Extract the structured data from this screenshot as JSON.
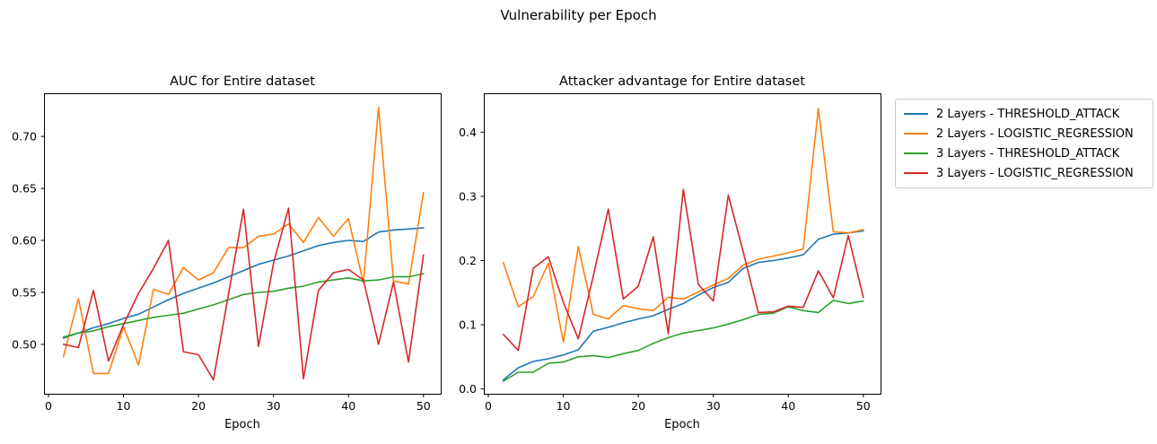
{
  "figure": {
    "title": "Vulnerability per Epoch",
    "background": "#ffffff",
    "text_color": "#000000"
  },
  "legend": {
    "position": "outside-right",
    "items": [
      {
        "label": "2 Layers - THRESHOLD_ATTACK",
        "color": "#1f77b4"
      },
      {
        "label": "2 Layers - LOGISTIC_REGRESSION",
        "color": "#ff7f0e"
      },
      {
        "label": "3 Layers - THRESHOLD_ATTACK",
        "color": "#2ca02c"
      },
      {
        "label": "3 Layers - LOGISTIC_REGRESSION",
        "color": "#d62728"
      }
    ]
  },
  "chart_data": [
    {
      "id": "auc-chart",
      "type": "line",
      "title": "AUC for Entire dataset",
      "xlabel": "Epoch",
      "ylabel": "",
      "grid": false,
      "xlim": [
        -0.6,
        52.3
      ],
      "ylim": [
        0.4525,
        0.7415
      ],
      "xticks": [
        0,
        10,
        20,
        30,
        40,
        50
      ],
      "yticks": [
        0.5,
        0.55,
        0.6,
        0.65,
        0.7
      ],
      "ytick_labels": [
        "0.50",
        "0.55",
        "0.60",
        "0.65",
        "0.70"
      ],
      "x": [
        2,
        4,
        6,
        8,
        10,
        12,
        14,
        16,
        18,
        20,
        22,
        24,
        26,
        28,
        30,
        32,
        34,
        36,
        38,
        40,
        42,
        44,
        46,
        48,
        50
      ],
      "series": [
        {
          "name": "2 Layers - THRESHOLD_ATTACK",
          "color": "#1f77b4",
          "values": [
            0.506,
            0.511,
            0.516,
            0.52,
            0.525,
            0.529,
            0.536,
            0.543,
            0.549,
            0.554,
            0.559,
            0.565,
            0.571,
            0.577,
            0.581,
            0.585,
            0.59,
            0.595,
            0.598,
            0.6,
            0.599,
            0.608,
            0.61,
            0.611,
            0.612
          ]
        },
        {
          "name": "2 Layers - LOGISTIC_REGRESSION",
          "color": "#ff7f0e",
          "values": [
            0.488,
            0.544,
            0.472,
            0.472,
            0.517,
            0.48,
            0.553,
            0.548,
            0.574,
            0.562,
            0.569,
            0.593,
            0.593,
            0.604,
            0.606,
            0.616,
            0.598,
            0.622,
            0.604,
            0.621,
            0.559,
            0.728,
            0.561,
            0.558,
            0.646
          ]
        },
        {
          "name": "3 Layers - THRESHOLD_ATTACK",
          "color": "#2ca02c",
          "values": [
            0.507,
            0.511,
            0.513,
            0.517,
            0.52,
            0.523,
            0.526,
            0.528,
            0.53,
            0.534,
            0.538,
            0.543,
            0.548,
            0.55,
            0.551,
            0.554,
            0.556,
            0.56,
            0.562,
            0.564,
            0.561,
            0.562,
            0.565,
            0.565,
            0.568
          ]
        },
        {
          "name": "3 Layers - LOGISTIC_REGRESSION",
          "color": "#d62728",
          "values": [
            0.5,
            0.497,
            0.552,
            0.484,
            0.519,
            0.549,
            0.573,
            0.6,
            0.493,
            0.49,
            0.466,
            0.548,
            0.63,
            0.498,
            0.578,
            0.631,
            0.467,
            0.552,
            0.569,
            0.572,
            0.562,
            0.5,
            0.56,
            0.483,
            0.586
          ]
        }
      ]
    },
    {
      "id": "attacker-advantage-chart",
      "type": "line",
      "title": "Attacker advantage for Entire dataset",
      "xlabel": "Epoch",
      "ylabel": "",
      "grid": false,
      "xlim": [
        -0.6,
        52.3
      ],
      "ylim": [
        -0.0075,
        0.4605
      ],
      "xticks": [
        0,
        10,
        20,
        30,
        40,
        50
      ],
      "yticks": [
        0.0,
        0.1,
        0.2,
        0.3,
        0.4
      ],
      "ytick_labels": [
        "0.0",
        "0.1",
        "0.2",
        "0.3",
        "0.4"
      ],
      "x": [
        2,
        4,
        6,
        8,
        10,
        12,
        14,
        16,
        18,
        20,
        22,
        24,
        26,
        28,
        30,
        32,
        34,
        36,
        38,
        40,
        42,
        44,
        46,
        48,
        50
      ],
      "series": [
        {
          "name": "2 Layers - THRESHOLD_ATTACK",
          "color": "#1f77b4",
          "values": [
            0.014,
            0.033,
            0.043,
            0.047,
            0.053,
            0.061,
            0.09,
            0.096,
            0.103,
            0.109,
            0.114,
            0.124,
            0.133,
            0.146,
            0.158,
            0.166,
            0.188,
            0.197,
            0.2,
            0.204,
            0.209,
            0.233,
            0.241,
            0.243,
            0.246
          ]
        },
        {
          "name": "2 Layers - LOGISTIC_REGRESSION",
          "color": "#ff7f0e",
          "values": [
            0.197,
            0.128,
            0.144,
            0.196,
            0.073,
            0.222,
            0.116,
            0.109,
            0.13,
            0.125,
            0.122,
            0.143,
            0.14,
            0.151,
            0.162,
            0.172,
            0.193,
            0.202,
            0.207,
            0.212,
            0.218,
            0.437,
            0.245,
            0.243,
            0.248
          ]
        },
        {
          "name": "3 Layers - THRESHOLD_ATTACK",
          "color": "#2ca02c",
          "values": [
            0.012,
            0.026,
            0.026,
            0.04,
            0.042,
            0.05,
            0.052,
            0.049,
            0.055,
            0.06,
            0.071,
            0.08,
            0.087,
            0.091,
            0.095,
            0.101,
            0.108,
            0.116,
            0.118,
            0.128,
            0.122,
            0.119,
            0.138,
            0.133,
            0.137
          ]
        },
        {
          "name": "3 Layers - LOGISTIC_REGRESSION",
          "color": "#d62728",
          "values": [
            0.085,
            0.06,
            0.188,
            0.206,
            0.135,
            0.078,
            0.176,
            0.28,
            0.14,
            0.16,
            0.237,
            0.086,
            0.311,
            0.163,
            0.137,
            0.302,
            0.213,
            0.119,
            0.12,
            0.129,
            0.127,
            0.184,
            0.142,
            0.239,
            0.143
          ]
        }
      ]
    }
  ]
}
